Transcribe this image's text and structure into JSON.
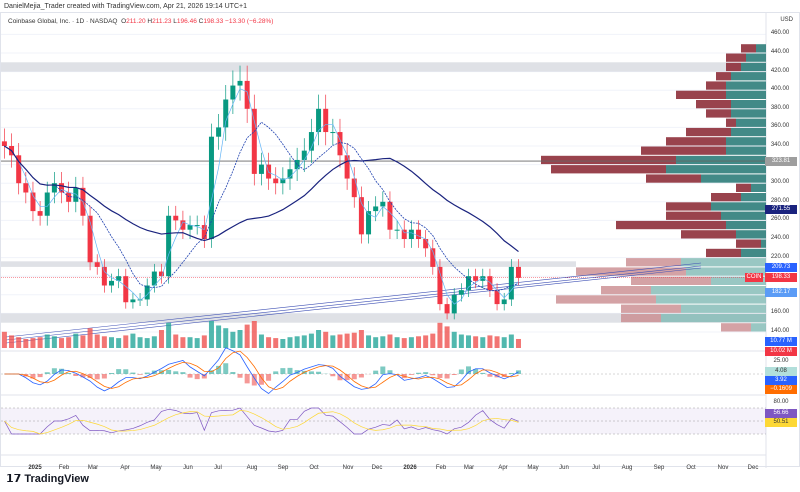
{
  "header": {
    "credit": "DanielMejia_Trader created with TradingView.com, Apr 21, 2026 19:14 UTC+1",
    "symbol": "Coinbase Global, Inc. · 1D · NASDAQ",
    "o_label": "O",
    "o": "211.20",
    "h_label": "H",
    "h": "211.23",
    "l_label": "L",
    "l": "196.46",
    "c_label": "C",
    "c": "198.33",
    "change": "−13.30 (−6.28%)"
  },
  "price_axis": {
    "currency": "USD",
    "ticks": [
      "460.00",
      "440.00",
      "420.00",
      "400.00",
      "380.00",
      "360.00",
      "340.00",
      "300.00",
      "280.00",
      "260.00",
      "240.00",
      "220.00",
      "160.00",
      "140.00"
    ]
  },
  "tags": [
    {
      "label": "323.81",
      "price": 323.81,
      "color": "#9e9e9e"
    },
    {
      "label": "271.55",
      "price": 271.55,
      "color": "#1a237e"
    },
    {
      "label": "209.73",
      "price": 209.73,
      "color": "#2962ff"
    },
    {
      "label": "198.33",
      "price": 198.33,
      "color": "#f23645",
      "symbol": "COIN"
    },
    {
      "label": "182.17",
      "price": 182.17,
      "color": "#5b9cf6"
    }
  ],
  "volume_tags": [
    {
      "label": "10.77 M",
      "color": "#2962ff"
    },
    {
      "label": "10.02 M",
      "color": "#f23645"
    }
  ],
  "macd": {
    "tick": "25.00",
    "zero": "0",
    "tags": [
      {
        "label": "4.08",
        "color": "#b2dfdb",
        "text": "#333"
      },
      {
        "label": "3.92",
        "color": "#2962ff",
        "text": "#fff"
      },
      {
        "label": "−0.1609",
        "color": "#ff6d00",
        "text": "#fff"
      }
    ]
  },
  "rsi": {
    "tick": "80.00",
    "tags": [
      {
        "label": "56.66",
        "color": "#7e57c2",
        "text": "#fff"
      },
      {
        "label": "50.51",
        "color": "#fdd835",
        "text": "#333"
      }
    ]
  },
  "x_axis": {
    "labels": [
      "2025",
      "Feb",
      "Mar",
      "Apr",
      "May",
      "Jun",
      "Jul",
      "Aug",
      "Sep",
      "Oct",
      "Nov",
      "Dec",
      "2026",
      "Feb",
      "Mar",
      "Apr",
      "May",
      "Jun",
      "Jul",
      "Aug",
      "Sep",
      "Oct",
      "Nov",
      "Dec"
    ]
  },
  "brand": "TradingView",
  "chart_data": {
    "type": "candlestick",
    "title": "Coinbase Global, Inc. · 1D · NASDAQ",
    "ylim": [
      140,
      460
    ],
    "colors": {
      "up": "#089981",
      "down": "#f23645"
    },
    "weekly_closes": {
      "dates": [
        "2024-12-02",
        "2024-12-09",
        "2024-12-16",
        "2024-12-23",
        "2024-12-30",
        "2025-01-06",
        "2025-01-13",
        "2025-01-20",
        "2025-01-27",
        "2025-02-03",
        "2025-02-10",
        "2025-02-17",
        "2025-02-24",
        "2025-03-03",
        "2025-03-10",
        "2025-03-17",
        "2025-03-24",
        "2025-03-31",
        "2025-04-07",
        "2025-04-14",
        "2025-04-21",
        "2025-04-28",
        "2025-05-05",
        "2025-05-12",
        "2025-05-19",
        "2025-05-26",
        "2025-06-02",
        "2025-06-09",
        "2025-06-16",
        "2025-06-23",
        "2025-06-30",
        "2025-07-07",
        "2025-07-14",
        "2025-07-21",
        "2025-07-28",
        "2025-08-04",
        "2025-08-11",
        "2025-08-18",
        "2025-08-25",
        "2025-09-01",
        "2025-09-08",
        "2025-09-15",
        "2025-09-22",
        "2025-09-29",
        "2025-10-06",
        "2025-10-13",
        "2025-10-20",
        "2025-10-27",
        "2025-11-03",
        "2025-11-10",
        "2025-11-17",
        "2025-11-24",
        "2025-12-01",
        "2025-12-08",
        "2025-12-15",
        "2025-12-22",
        "2025-12-29",
        "2026-01-05",
        "2026-01-12",
        "2026-01-19",
        "2026-01-26",
        "2026-02-02",
        "2026-02-09",
        "2026-02-16",
        "2026-02-23",
        "2026-03-02",
        "2026-03-09",
        "2026-03-16",
        "2026-03-23",
        "2026-03-30",
        "2026-04-06",
        "2026-04-13",
        "2026-04-20"
      ],
      "close": [
        340,
        330,
        300,
        290,
        270,
        265,
        290,
        300,
        290,
        280,
        295,
        265,
        215,
        210,
        190,
        195,
        200,
        172,
        175,
        175,
        190,
        205,
        200,
        265,
        260,
        250,
        255,
        255,
        240,
        350,
        360,
        390,
        405,
        410,
        380,
        310,
        320,
        305,
        300,
        305,
        315,
        325,
        335,
        355,
        380,
        355,
        355,
        330,
        305,
        285,
        245,
        270,
        275,
        280,
        250,
        250,
        240,
        250,
        240,
        230,
        210,
        170,
        160,
        180,
        185,
        200,
        195,
        200,
        185,
        170,
        175,
        210,
        198.33
      ],
      "volume_m": [
        18,
        14,
        12,
        10,
        11,
        12,
        15,
        13,
        11,
        12,
        16,
        14,
        22,
        15,
        13,
        12,
        11,
        14,
        16,
        12,
        11,
        13,
        20,
        28,
        15,
        12,
        12,
        11,
        14,
        30,
        25,
        22,
        18,
        20,
        26,
        30,
        15,
        12,
        11,
        10,
        12,
        13,
        14,
        16,
        20,
        18,
        14,
        15,
        16,
        17,
        20,
        14,
        12,
        13,
        15,
        12,
        11,
        12,
        13,
        14,
        16,
        28,
        24,
        18,
        15,
        14,
        13,
        12,
        14,
        13,
        12,
        15,
        10.02
      ]
    },
    "volume_profile": {
      "prices": [
        440,
        430,
        420,
        410,
        400,
        390,
        380,
        370,
        360,
        350,
        340,
        330,
        320,
        310,
        300,
        290,
        280,
        270,
        260,
        250,
        240,
        230,
        220,
        210,
        200,
        190,
        180,
        170,
        160,
        150,
        140
      ],
      "total": [
        25,
        40,
        40,
        50,
        60,
        90,
        70,
        60,
        40,
        80,
        100,
        125,
        225,
        215,
        120,
        30,
        55,
        100,
        100,
        150,
        85,
        30,
        60,
        140,
        190,
        135,
        165,
        210,
        145,
        145,
        45
      ],
      "down": [
        15,
        20,
        15,
        15,
        20,
        50,
        35,
        25,
        10,
        45,
        60,
        85,
        135,
        115,
        55,
        15,
        30,
        45,
        55,
        110,
        55,
        25,
        35,
        55,
        110,
        80,
        50,
        100,
        60,
        40,
        30
      ]
    },
    "horizontal_levels": [
      323.81,
      198.33
    ],
    "zones": [
      [
        420,
        430
      ],
      [
        150,
        160
      ],
      [
        210,
        216
      ]
    ]
  }
}
